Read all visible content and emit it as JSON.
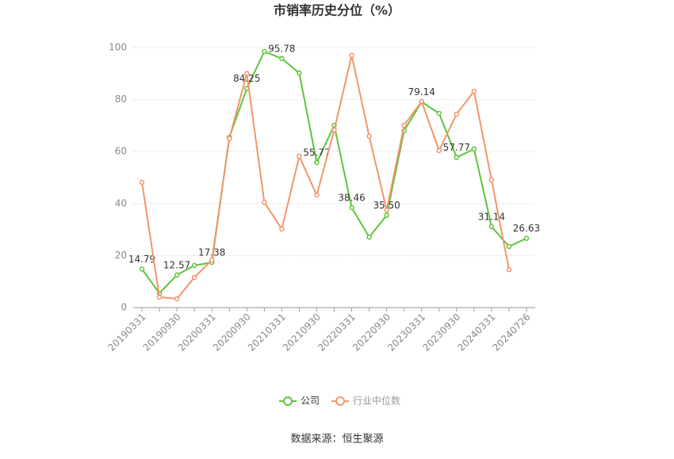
{
  "chart_data": {
    "type": "line",
    "title": "市销率历史分位（%）",
    "categories": [
      "20190331",
      null,
      "20190930",
      null,
      "20200331",
      null,
      "20200930",
      null,
      "20210331",
      null,
      "20210930",
      null,
      "20220331",
      null,
      "20220930",
      null,
      "20230331",
      null,
      "20230930",
      null,
      "20240331",
      null,
      "20240726"
    ],
    "series": [
      {
        "name": "公司",
        "color": "#5ec43b",
        "values": [
          14.79,
          5.5,
          12.57,
          16.2,
          17.38,
          65.5,
          84.25,
          98.5,
          95.78,
          90.2,
          55.77,
          70.1,
          38.46,
          27.1,
          35.5,
          68,
          79.14,
          74.7,
          57.77,
          61,
          31.14,
          23.5,
          26.63
        ],
        "value_labels": [
          "14.79",
          null,
          "12.57",
          null,
          "17.38",
          null,
          "84.25",
          null,
          "95.78",
          null,
          "55.77",
          null,
          "38.46",
          null,
          "35.50",
          null,
          "79.14",
          null,
          "57.77",
          null,
          "31.14",
          null,
          "26.63"
        ]
      },
      {
        "name": "行业中位数",
        "color": "#f2956b",
        "values": [
          48.2,
          4,
          3.4,
          11.6,
          18.3,
          65,
          90,
          40.5,
          30.2,
          58.2,
          43.3,
          68.3,
          97,
          65.9,
          37.5,
          70.1,
          79.3,
          60.4,
          74.4,
          83.2,
          49.1,
          14.6,
          null
        ]
      }
    ],
    "ylim": [
      0,
      100
    ],
    "yticks": [
      0,
      20,
      40,
      60,
      80,
      100
    ],
    "grid": true,
    "legend": "bottom",
    "source": "数据来源：恒生聚源"
  }
}
